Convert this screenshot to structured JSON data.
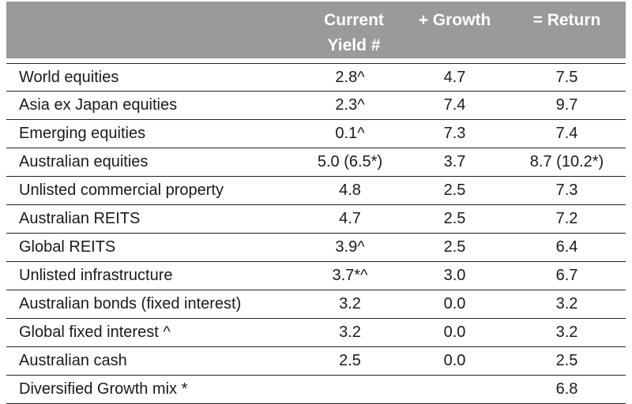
{
  "chart_data": {
    "type": "table",
    "columns": [
      "",
      "Current Yield #",
      "+ Growth",
      "= Return"
    ],
    "header": {
      "yield_line1": "Current",
      "yield_line2": "Yield #",
      "growth": "+ Growth",
      "return": "= Return"
    },
    "rows": [
      {
        "asset": "World equities",
        "yield": "2.8^",
        "growth": "4.7",
        "return": "7.5"
      },
      {
        "asset": "Asia ex Japan equities",
        "yield": "2.3^",
        "growth": "7.4",
        "return": "9.7"
      },
      {
        "asset": "Emerging equities",
        "yield": "0.1^",
        "growth": "7.3",
        "return": "7.4"
      },
      {
        "asset": "Australian equities",
        "yield": "5.0 (6.5*)",
        "growth": "3.7",
        "return": "8.7 (10.2*)"
      },
      {
        "asset": "Unlisted commercial property",
        "yield": "4.8",
        "growth": "2.5",
        "return": "7.3"
      },
      {
        "asset": "Australian REITS",
        "yield": "4.7",
        "growth": "2.5",
        "return": "7.2"
      },
      {
        "asset": "Global REITS",
        "yield": "3.9^",
        "growth": "2.5",
        "return": "6.4"
      },
      {
        "asset": "Unlisted infrastructure",
        "yield": "3.7*^",
        "growth": "3.0",
        "return": "6.7"
      },
      {
        "asset": "Australian bonds (fixed interest)",
        "yield": "3.2",
        "growth": "0.0",
        "return": "3.2"
      },
      {
        "asset": "Global fixed interest ^",
        "yield": "3.2",
        "growth": "0.0",
        "return": "3.2"
      },
      {
        "asset": "Australian cash",
        "yield": "2.5",
        "growth": "0.0",
        "return": "2.5"
      },
      {
        "asset": "Diversified Growth mix *",
        "yield": "",
        "growth": "",
        "return": "6.8"
      }
    ]
  },
  "colors": {
    "header_bg": "#9a9a9a",
    "header_text": "#ffffff",
    "row_rule": "#222222",
    "body_text": "#1a1a1a"
  }
}
